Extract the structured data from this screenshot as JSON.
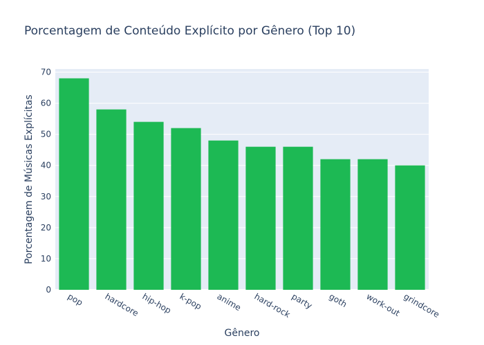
{
  "chart_data": {
    "type": "bar",
    "title": "Porcentagem de Conteúdo Explícito por Gênero (Top 10)",
    "xlabel": "Gênero",
    "ylabel": "Porcentagem de Músicas Explícitas",
    "categories": [
      "pop",
      "hardcore",
      "hip-hop",
      "k-pop",
      "anime",
      "hard-rock",
      "party",
      "goth",
      "work-out",
      "grindcore"
    ],
    "values": [
      68,
      58,
      54,
      52,
      48,
      46,
      46,
      42,
      42,
      40
    ],
    "ylim": [
      0,
      71
    ],
    "yticks": [
      0,
      10,
      20,
      30,
      40,
      50,
      60,
      70
    ],
    "grid": true,
    "colors": {
      "bar": "#1db954",
      "plot_bg": "#e5ecf6",
      "grid": "#ffffff",
      "text": "#2a3f5f"
    }
  }
}
